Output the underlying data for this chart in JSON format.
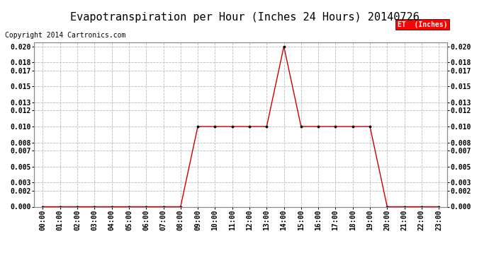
{
  "title": "Evapotranspiration per Hour (Inches 24 Hours) 20140726",
  "copyright": "Copyright 2014 Cartronics.com",
  "legend_label": "ET  (Inches)",
  "legend_bg": "#ff0000",
  "legend_fg": "#ffffff",
  "line_color": "#cc0000",
  "marker_color": "#000000",
  "background_color": "#ffffff",
  "grid_color": "#bbbbbb",
  "hours": [
    0,
    1,
    2,
    3,
    4,
    5,
    6,
    7,
    8,
    9,
    10,
    11,
    12,
    13,
    14,
    15,
    16,
    17,
    18,
    19,
    20,
    21,
    22,
    23
  ],
  "values": [
    0.0,
    0.0,
    0.0,
    0.0,
    0.0,
    0.0,
    0.0,
    0.0,
    0.0,
    0.01,
    0.01,
    0.01,
    0.01,
    0.01,
    0.02,
    0.01,
    0.01,
    0.01,
    0.01,
    0.01,
    0.0,
    0.0,
    0.0,
    0.0
  ],
  "ylim": [
    0.0,
    0.0205
  ],
  "yticks": [
    0.0,
    0.002,
    0.003,
    0.005,
    0.007,
    0.008,
    0.01,
    0.012,
    0.013,
    0.015,
    0.017,
    0.018,
    0.02
  ],
  "xlim": [
    -0.5,
    23.5
  ],
  "xlabel_hours": [
    "00:00",
    "01:00",
    "02:00",
    "03:00",
    "04:00",
    "05:00",
    "06:00",
    "07:00",
    "08:00",
    "09:00",
    "10:00",
    "11:00",
    "12:00",
    "13:00",
    "14:00",
    "15:00",
    "16:00",
    "17:00",
    "18:00",
    "19:00",
    "20:00",
    "21:00",
    "22:00",
    "23:00"
  ],
  "title_fontsize": 11,
  "tick_fontsize": 7,
  "copyright_fontsize": 7
}
